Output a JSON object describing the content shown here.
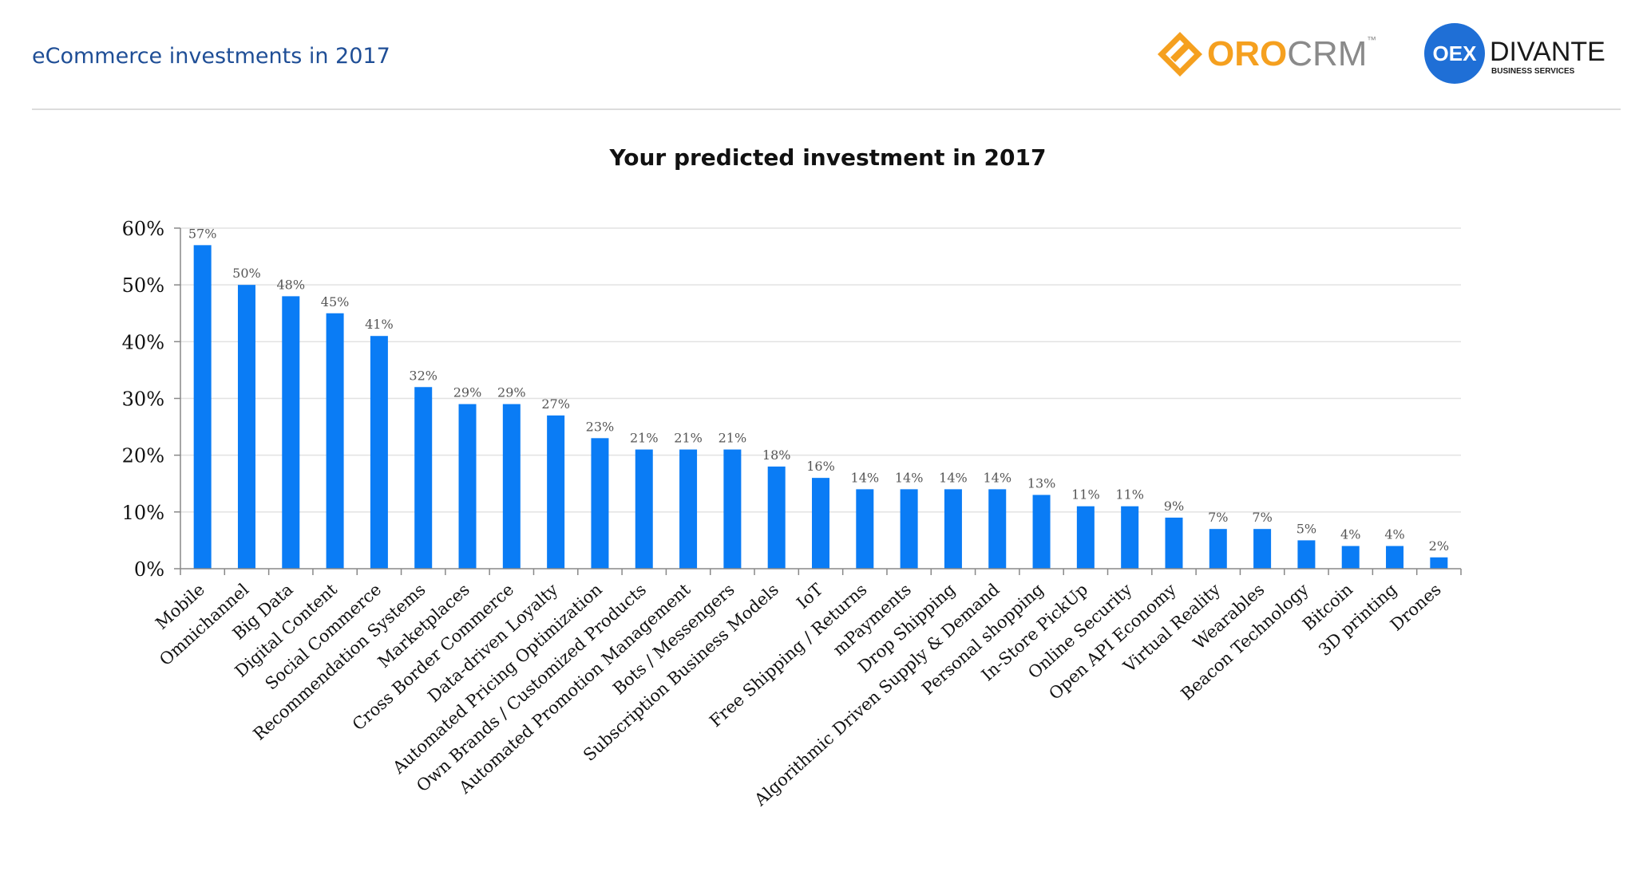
{
  "header": {
    "title": "eCommerce investments in 2017",
    "rule_color": "#dcdcdc",
    "title_color": "#1f4e96"
  },
  "logos": {
    "orocrm": {
      "text_oro": "ORO",
      "text_crm": "CRM",
      "tm": "™",
      "icon": "orocrm-diamond-icon",
      "color_oro": "#f5a01f",
      "color_crm": "#8a8a8a"
    },
    "divante": {
      "badge": "OEX",
      "name": "DIVANTE",
      "tagline": "BUSINESS SERVICES",
      "icon": "divante-circle-icon",
      "badge_color": "#1f6fd6"
    }
  },
  "chart_data": {
    "type": "bar",
    "title": "Your predicted investment in 2017",
    "xlabel": "",
    "ylabel": "",
    "ylim": [
      0,
      60
    ],
    "yticks": [
      0,
      10,
      20,
      30,
      40,
      50,
      60
    ],
    "ytick_labels": [
      "0%",
      "10%",
      "20%",
      "30%",
      "40%",
      "50%",
      "60%"
    ],
    "grid": true,
    "legend": "none",
    "bar_color": "#0a7cf5",
    "categories": [
      "Mobile",
      "Omnichannel",
      "Big Data",
      "Digital Content",
      "Social Commerce",
      "Recommendation Systems",
      "Marketplaces",
      "Cross Border Commerce",
      "Data-driven Loyalty",
      "Automated Pricing Optimization",
      "Own Brands / Customized Products",
      "Automated Promotion Management",
      "Bots / Messengers",
      "Subscription Business Models",
      "IoT",
      "Free Shipping / Returns",
      "mPayments",
      "Drop Shipping",
      "Algorithmic Driven Supply & Demand",
      "Personal shopping",
      "In-Store PickUp",
      "Online Security",
      "Open API Economy",
      "Virtual Reality",
      "Wearables",
      "Beacon Technology",
      "Bitcoin",
      "3D printing",
      "Drones"
    ],
    "values": [
      57,
      50,
      48,
      45,
      41,
      32,
      29,
      29,
      27,
      23,
      21,
      21,
      21,
      18,
      16,
      14,
      14,
      14,
      14,
      13,
      11,
      11,
      9,
      7,
      7,
      5,
      4,
      4,
      2
    ],
    "data_labels": [
      "57%",
      "50%",
      "48%",
      "45%",
      "41%",
      "32%",
      "29%",
      "29%",
      "27%",
      "23%",
      "21%",
      "21%",
      "21%",
      "18%",
      "16%",
      "14%",
      "14%",
      "14%",
      "14%",
      "13%",
      "11%",
      "11%",
      "9%",
      "7%",
      "7%",
      "5%",
      "4%",
      "4%",
      "2%"
    ]
  }
}
